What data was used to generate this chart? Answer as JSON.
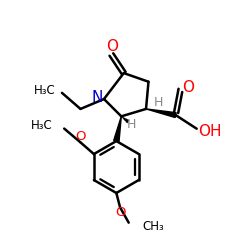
{
  "bg_color": "#ffffff",
  "bond_color": "#000000",
  "N_color": "#0000cd",
  "O_color": "#ff0000",
  "H_color": "#888888",
  "lw": 1.8,
  "xlim": [
    0,
    10
  ],
  "ylim": [
    0,
    10
  ],
  "figsize": [
    2.5,
    2.5
  ],
  "dpi": 100
}
